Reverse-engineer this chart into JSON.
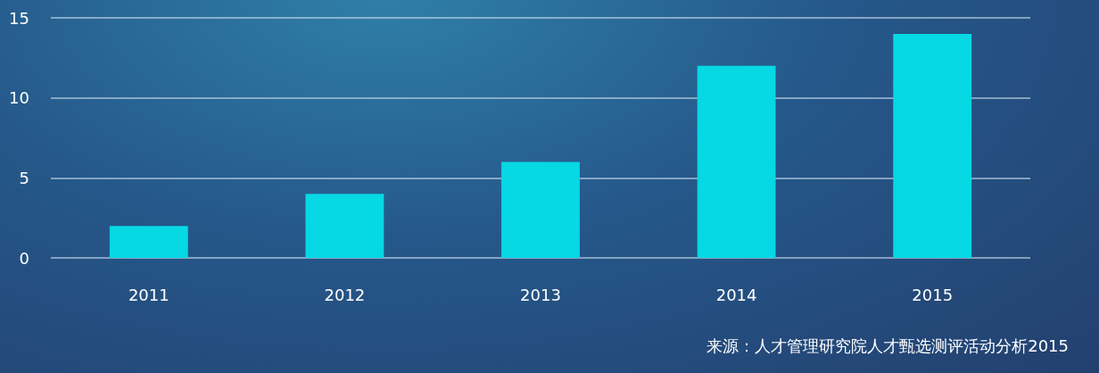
{
  "chart_data": {
    "type": "bar",
    "categories": [
      "2011",
      "2012",
      "2013",
      "2014",
      "2015"
    ],
    "values": [
      2,
      4,
      6,
      12,
      14
    ],
    "color": "#06d8e4",
    "ylim": [
      0,
      15
    ],
    "yticks": [
      0,
      5,
      10,
      15
    ],
    "grid": "y",
    "annotations": [
      "来源：人才管理研究院人才甄选测评活动分析2015"
    ]
  }
}
